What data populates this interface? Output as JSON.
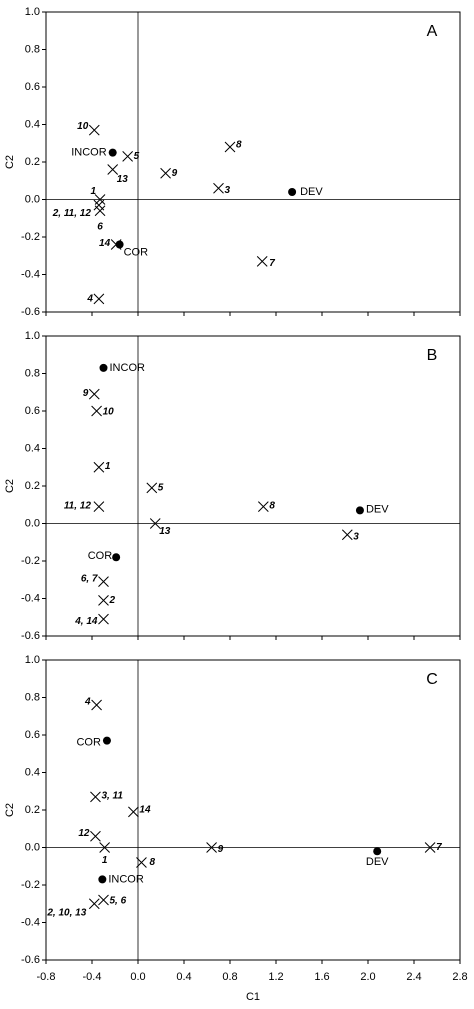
{
  "chart_data": [
    {
      "type": "scatter",
      "panel_label": "A",
      "ylabel": "C2",
      "xlim": [
        -0.8,
        2.8
      ],
      "ylim": [
        -0.6,
        1.0
      ],
      "xtick_labels": false,
      "xticks": [
        {
          "value": -0.8,
          "label": "-0.8"
        },
        {
          "value": -0.4,
          "label": "-0.4"
        },
        {
          "value": 0,
          "label": "0.0"
        },
        {
          "value": 0.4,
          "label": "0.4"
        },
        {
          "value": 0.8,
          "label": "0.8"
        },
        {
          "value": 1.2,
          "label": "1.2"
        },
        {
          "value": 1.6,
          "label": "1.6"
        },
        {
          "value": 2.0,
          "label": "2.0"
        },
        {
          "value": 2.4,
          "label": "2.4"
        },
        {
          "value": 2.8,
          "label": "2.8"
        }
      ],
      "yticks": [
        {
          "value": 1.0,
          "label": "1.0"
        },
        {
          "value": 0.8,
          "label": "0.8"
        },
        {
          "value": 0.6,
          "label": "0.6"
        },
        {
          "value": 0.4,
          "label": "0.4"
        },
        {
          "value": 0.2,
          "label": "0.2"
        },
        {
          "value": 0,
          "label": "0.0"
        },
        {
          "value": -0.2,
          "label": "-0.2"
        },
        {
          "value": -0.4,
          "label": "-0.4"
        },
        {
          "value": -0.6,
          "label": "-0.6"
        }
      ],
      "points": [
        {
          "label": "10",
          "x": -0.38,
          "y": 0.37,
          "marker": "cross"
        },
        {
          "label": "INCOR",
          "x": -0.22,
          "y": 0.25,
          "marker": "dot"
        },
        {
          "label": "5",
          "x": -0.09,
          "y": 0.23,
          "marker": "cross"
        },
        {
          "label": "13",
          "x": -0.22,
          "y": 0.16,
          "marker": "cross"
        },
        {
          "label": "9",
          "x": 0.24,
          "y": 0.14,
          "marker": "cross"
        },
        {
          "label": "8",
          "x": 0.8,
          "y": 0.28,
          "marker": "cross"
        },
        {
          "label": "3",
          "x": 0.7,
          "y": 0.06,
          "marker": "cross"
        },
        {
          "label": "DEV",
          "x": 1.34,
          "y": 0.04,
          "marker": "dot"
        },
        {
          "label": "1",
          "x": -0.33,
          "y": 0.0,
          "marker": "cross"
        },
        {
          "label": "2, 11, 12",
          "x": -0.34,
          "y": -0.03,
          "marker": "cross"
        },
        {
          "label": "6",
          "x": -0.33,
          "y": -0.06,
          "marker": "cross"
        },
        {
          "label": "14",
          "x": -0.19,
          "y": -0.24,
          "marker": "cross"
        },
        {
          "label": "COR",
          "x": -0.16,
          "y": -0.24,
          "marker": "dot"
        },
        {
          "label": "7",
          "x": 1.08,
          "y": -0.33,
          "marker": "cross"
        },
        {
          "label": "4",
          "x": -0.34,
          "y": -0.53,
          "marker": "cross"
        }
      ]
    },
    {
      "type": "scatter",
      "panel_label": "B",
      "ylabel": "C2",
      "xlim": [
        -0.8,
        2.8
      ],
      "ylim": [
        -0.6,
        1.0
      ],
      "xtick_labels": false,
      "xticks": [
        {
          "value": -0.8,
          "label": "-0.8"
        },
        {
          "value": -0.4,
          "label": "-0.4"
        },
        {
          "value": 0,
          "label": "0.0"
        },
        {
          "value": 0.4,
          "label": "0.4"
        },
        {
          "value": 0.8,
          "label": "0.8"
        },
        {
          "value": 1.2,
          "label": "1.2"
        },
        {
          "value": 1.6,
          "label": "1.6"
        },
        {
          "value": 2.0,
          "label": "2.0"
        },
        {
          "value": 2.4,
          "label": "2.4"
        },
        {
          "value": 2.8,
          "label": "2.8"
        }
      ],
      "yticks": [
        {
          "value": 1.0,
          "label": "1.0"
        },
        {
          "value": 0.8,
          "label": "0.8"
        },
        {
          "value": 0.6,
          "label": "0.6"
        },
        {
          "value": 0.4,
          "label": "0.4"
        },
        {
          "value": 0.2,
          "label": "0.2"
        },
        {
          "value": 0,
          "label": "0.0"
        },
        {
          "value": -0.2,
          "label": "-0.2"
        },
        {
          "value": -0.4,
          "label": "-0.4"
        },
        {
          "value": -0.6,
          "label": "-0.6"
        }
      ],
      "points": [
        {
          "label": "INCOR",
          "x": -0.3,
          "y": 0.83,
          "marker": "dot"
        },
        {
          "label": "9",
          "x": -0.38,
          "y": 0.69,
          "marker": "cross"
        },
        {
          "label": "10",
          "x": -0.36,
          "y": 0.6,
          "marker": "cross"
        },
        {
          "label": "1",
          "x": -0.34,
          "y": 0.3,
          "marker": "cross"
        },
        {
          "label": "11, 12",
          "x": -0.34,
          "y": 0.09,
          "marker": "cross"
        },
        {
          "label": "5",
          "x": 0.12,
          "y": 0.19,
          "marker": "cross"
        },
        {
          "label": "8",
          "x": 1.09,
          "y": 0.09,
          "marker": "cross"
        },
        {
          "label": "DEV",
          "x": 1.93,
          "y": 0.07,
          "marker": "dot"
        },
        {
          "label": "3",
          "x": 1.82,
          "y": -0.06,
          "marker": "cross"
        },
        {
          "label": "13",
          "x": 0.15,
          "y": 0.0,
          "marker": "cross"
        },
        {
          "label": "COR",
          "x": -0.19,
          "y": -0.18,
          "marker": "dot"
        },
        {
          "label": "6, 7",
          "x": -0.3,
          "y": -0.31,
          "marker": "cross"
        },
        {
          "label": "2",
          "x": -0.3,
          "y": -0.41,
          "marker": "cross"
        },
        {
          "label": "4, 14",
          "x": -0.3,
          "y": -0.51,
          "marker": "cross"
        }
      ]
    },
    {
      "type": "scatter",
      "panel_label": "C",
      "ylabel": "C2",
      "xlabel": "C1",
      "xlim": [
        -0.8,
        2.8
      ],
      "ylim": [
        -0.6,
        1.0
      ],
      "xtick_labels": true,
      "xticks": [
        {
          "value": -0.8,
          "label": "-0.8"
        },
        {
          "value": -0.4,
          "label": "-0.4"
        },
        {
          "value": 0,
          "label": "0.0"
        },
        {
          "value": 0.4,
          "label": "0.4"
        },
        {
          "value": 0.8,
          "label": "0.8"
        },
        {
          "value": 1.2,
          "label": "1.2"
        },
        {
          "value": 1.6,
          "label": "1.6"
        },
        {
          "value": 2.0,
          "label": "2.0"
        },
        {
          "value": 2.4,
          "label": "2.4"
        },
        {
          "value": 2.8,
          "label": "2.8"
        }
      ],
      "yticks": [
        {
          "value": 1.0,
          "label": "1.0"
        },
        {
          "value": 0.8,
          "label": "0.8"
        },
        {
          "value": 0.6,
          "label": "0.6"
        },
        {
          "value": 0.4,
          "label": "0.4"
        },
        {
          "value": 0.2,
          "label": "0.2"
        },
        {
          "value": 0,
          "label": "0.0"
        },
        {
          "value": -0.2,
          "label": "-0.2"
        },
        {
          "value": -0.4,
          "label": "-0.4"
        },
        {
          "value": -0.6,
          "label": "-0.6"
        }
      ],
      "points": [
        {
          "label": "4",
          "x": -0.36,
          "y": 0.76,
          "marker": "cross"
        },
        {
          "label": "COR",
          "x": -0.27,
          "y": 0.57,
          "marker": "dot"
        },
        {
          "label": "3, 11",
          "x": -0.37,
          "y": 0.27,
          "marker": "cross"
        },
        {
          "label": "14",
          "x": -0.04,
          "y": 0.19,
          "marker": "cross"
        },
        {
          "label": "12",
          "x": -0.37,
          "y": 0.06,
          "marker": "cross"
        },
        {
          "label": "1",
          "x": -0.29,
          "y": 0.0,
          "marker": "cross"
        },
        {
          "label": "8",
          "x": 0.03,
          "y": -0.08,
          "marker": "cross"
        },
        {
          "label": "9",
          "x": 0.64,
          "y": 0.0,
          "marker": "cross"
        },
        {
          "label": "DEV",
          "x": 2.08,
          "y": -0.02,
          "marker": "dot"
        },
        {
          "label": "7",
          "x": 2.54,
          "y": 0.0,
          "marker": "cross"
        },
        {
          "label": "INCOR",
          "x": -0.31,
          "y": -0.17,
          "marker": "dot"
        },
        {
          "label": "5, 6",
          "x": -0.3,
          "y": -0.28,
          "marker": "cross"
        },
        {
          "label": "2, 10, 13",
          "x": -0.38,
          "y": -0.3,
          "marker": "cross"
        }
      ]
    }
  ]
}
